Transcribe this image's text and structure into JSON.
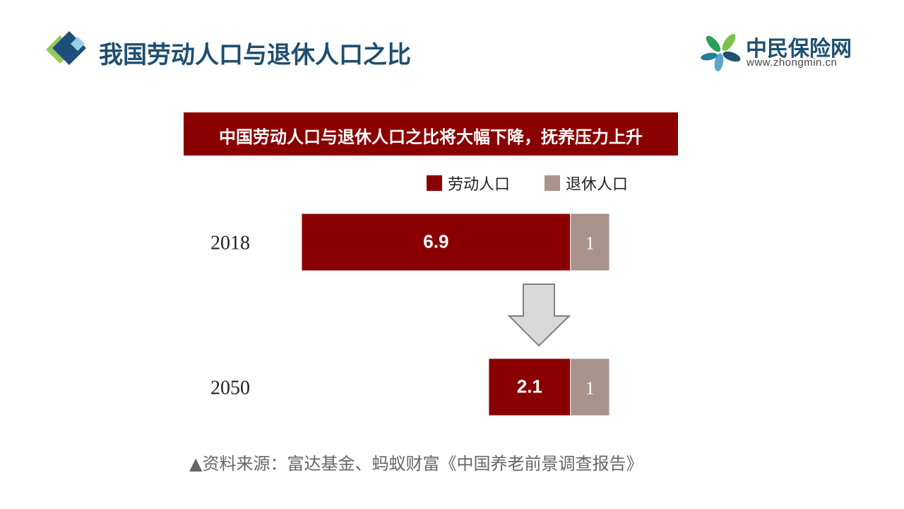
{
  "header": {
    "title": "我国劳动人口与退休人口之比"
  },
  "logo": {
    "name": "中民保险网",
    "url": "www.zhongmin.cn"
  },
  "colors": {
    "labor": "#8a0000",
    "retired": "#a9928a",
    "title": "#1f4e6e"
  },
  "chart_data": {
    "type": "bar",
    "orientation": "horizontal",
    "stacked": true,
    "title": "中国劳动人口与退休人口之比将大幅下降，抚养压力上升",
    "categories": [
      "2018",
      "2050"
    ],
    "series": [
      {
        "name": "劳动人口",
        "values": [
          6.9,
          2.1
        ]
      },
      {
        "name": "退休人口",
        "values": [
          1,
          1
        ]
      }
    ],
    "legend": "top-right",
    "grid": false
  },
  "footer": {
    "source": "▲资料来源：富达基金、蚂蚁财富《中国养老前景调查报告》"
  }
}
